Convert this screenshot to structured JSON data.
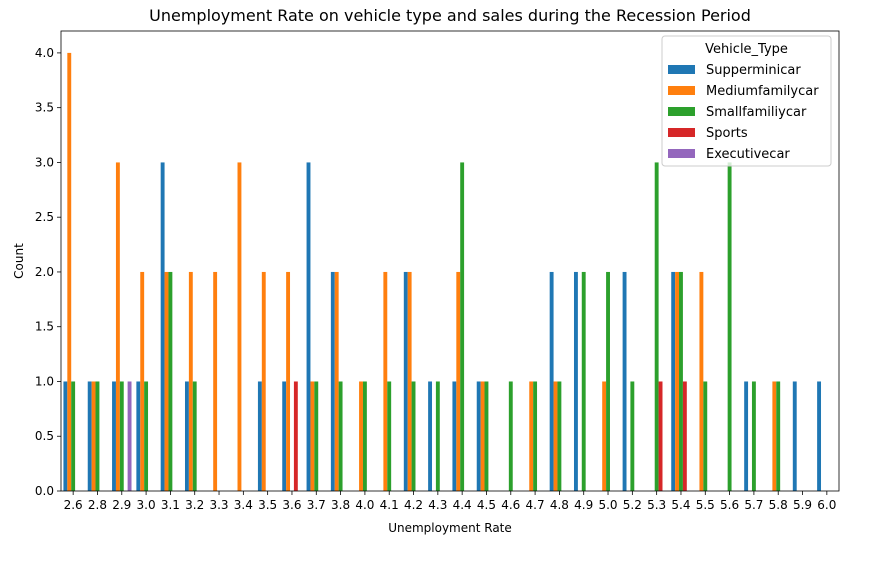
{
  "chart_data": {
    "type": "bar",
    "title": "Unemployment Rate on vehicle type and sales during the Recession Period",
    "xlabel": "Unemployment Rate",
    "ylabel": "Count",
    "ylim": [
      0,
      4.2
    ],
    "yticks": [
      "0.0",
      "0.5",
      "1.0",
      "1.5",
      "2.0",
      "2.5",
      "3.0",
      "3.5",
      "4.0"
    ],
    "categories": [
      "2.6",
      "2.8",
      "2.9",
      "3.0",
      "3.1",
      "3.2",
      "3.3",
      "3.4",
      "3.5",
      "3.6",
      "3.7",
      "3.8",
      "4.0",
      "4.1",
      "4.2",
      "4.3",
      "4.4",
      "4.5",
      "4.6",
      "4.7",
      "4.8",
      "4.9",
      "5.0",
      "5.2",
      "5.3",
      "5.4",
      "5.5",
      "5.6",
      "5.7",
      "5.8",
      "5.9",
      "6.0"
    ],
    "legend_title": "Vehicle_Type",
    "legend_position": "top-right",
    "grid": false,
    "series": [
      {
        "name": "Supperminicar",
        "color": "#1f77b4",
        "values": [
          1,
          1,
          1,
          1,
          3,
          1,
          0,
          0,
          1,
          1,
          3,
          2,
          0,
          0,
          2,
          1,
          1,
          1,
          0,
          0,
          2,
          2,
          0,
          2,
          0,
          2,
          0,
          0,
          1,
          0,
          1,
          1
        ]
      },
      {
        "name": "Mediumfamilycar",
        "color": "#ff7f0e",
        "values": [
          4,
          1,
          3,
          2,
          2,
          2,
          2,
          3,
          2,
          2,
          1,
          2,
          1,
          2,
          2,
          0,
          2,
          1,
          0,
          1,
          1,
          0,
          1,
          0,
          0,
          2,
          2,
          0,
          0,
          1,
          0,
          0
        ]
      },
      {
        "name": "Smallfamiliycar",
        "color": "#2ca02c",
        "values": [
          1,
          1,
          1,
          1,
          2,
          1,
          0,
          0,
          0,
          0,
          1,
          1,
          1,
          1,
          1,
          1,
          3,
          1,
          1,
          1,
          1,
          2,
          2,
          1,
          3,
          2,
          1,
          3,
          1,
          1,
          0,
          0
        ]
      },
      {
        "name": "Sports",
        "color": "#d62728",
        "values": [
          0,
          0,
          0,
          0,
          0,
          0,
          0,
          0,
          0,
          1,
          0,
          0,
          0,
          0,
          0,
          0,
          0,
          0,
          0,
          0,
          0,
          0,
          0,
          0,
          1,
          1,
          0,
          0,
          0,
          0,
          0,
          0
        ]
      },
      {
        "name": "Executivecar",
        "color": "#9467bd",
        "values": [
          0,
          0,
          1,
          0,
          0,
          0,
          0,
          0,
          0,
          0,
          0,
          0,
          0,
          0,
          0,
          0,
          0,
          0,
          0,
          0,
          0,
          0,
          0,
          0,
          0,
          0,
          0,
          0,
          0,
          0,
          0,
          0
        ]
      }
    ]
  }
}
